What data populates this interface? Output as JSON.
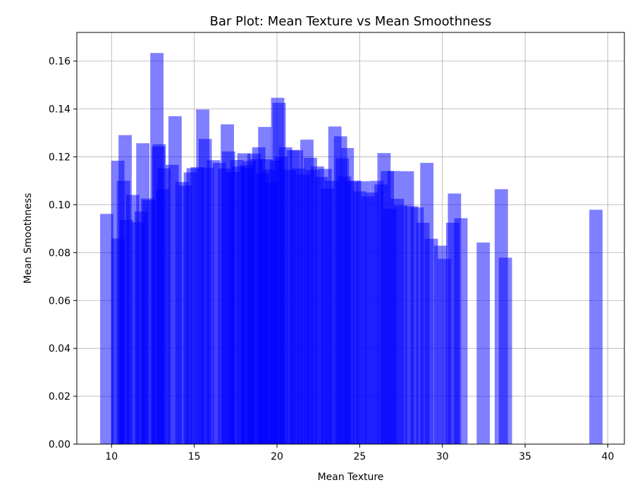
{
  "chart_data": {
    "type": "bar",
    "title": "Bar Plot: Mean Texture vs Mean Smoothness",
    "xlabel": "Mean Texture",
    "ylabel": "Mean Smoothness",
    "xlim": [
      7.9,
      41.0
    ],
    "ylim": [
      0.0,
      0.172
    ],
    "xticks": [
      10,
      15,
      20,
      25,
      30,
      35,
      40
    ],
    "yticks": [
      0.0,
      0.02,
      0.04,
      0.06,
      0.08,
      0.1,
      0.12,
      0.14,
      0.16
    ],
    "bar_width": 0.8,
    "bar_color": "#0000ff",
    "bar_alpha": 0.5,
    "grid": true,
    "x": [
      9.71,
      10.38,
      10.38,
      10.72,
      10.82,
      10.89,
      11.28,
      11.61,
      11.79,
      11.89,
      12.17,
      12.27,
      12.74,
      12.83,
      12.88,
      13.08,
      13.17,
      13.66,
      13.84,
      14.26,
      14.44,
      14.76,
      14.93,
      15.18,
      15.51,
      15.66,
      15.79,
      16.17,
      16.52,
      16.84,
      17.0,
      17.07,
      17.33,
      17.57,
      17.66,
      18.0,
      18.19,
      18.22,
      18.32,
      18.61,
      18.75,
      18.9,
      19.11,
      19.26,
      19.35,
      19.48,
      19.67,
      19.97,
      20.04,
      20.13,
      20.25,
      20.52,
      20.74,
      20.98,
      21.18,
      21.31,
      21.59,
      21.81,
      22.02,
      22.15,
      22.44,
      22.68,
      22.91,
      23.06,
      23.29,
      23.5,
      23.84,
      23.95,
      24.08,
      24.25,
      24.52,
      24.69,
      24.99,
      25.22,
      25.49,
      25.74,
      26.03,
      26.29,
      26.47,
      26.67,
      26.83,
      27.08,
      27.27,
      27.47,
      27.88,
      28.14,
      28.47,
      28.82,
      29.06,
      29.33,
      29.89,
      30.12,
      30.62,
      30.73,
      31.12,
      32.47,
      33.56,
      33.81,
      39.28
    ],
    "values": [
      0.0962,
      0.1184,
      0.0859,
      0.11,
      0.1291,
      0.0937,
      0.1041,
      0.0927,
      0.0972,
      0.1257,
      0.1026,
      0.1019,
      0.1634,
      0.1243,
      0.1253,
      0.1065,
      0.1152,
      0.1167,
      0.137,
      0.1095,
      0.108,
      0.1135,
      0.1153,
      0.1157,
      0.1398,
      0.1275,
      0.1155,
      0.1186,
      0.1175,
      0.1151,
      0.1336,
      0.1223,
      0.1137,
      0.1187,
      0.116,
      0.1215,
      0.1165,
      0.1152,
      0.1183,
      0.1214,
      0.1191,
      0.124,
      0.1132,
      0.1325,
      0.119,
      0.1147,
      0.1093,
      0.1184,
      0.1447,
      0.1426,
      0.1201,
      0.124,
      0.1145,
      0.1229,
      0.1227,
      0.1151,
      0.1127,
      0.1272,
      0.1196,
      0.1146,
      0.116,
      0.1116,
      0.115,
      0.1067,
      0.11,
      0.1327,
      0.1286,
      0.1194,
      0.1118,
      0.1237,
      0.1097,
      0.1101,
      0.1056,
      0.1098,
      0.1035,
      0.1051,
      0.11,
      0.1085,
      0.1216,
      0.1141,
      0.0983,
      0.1141,
      0.1025,
      0.0997,
      0.114,
      0.0994,
      0.0989,
      0.0925,
      0.1175,
      0.0858,
      0.0829,
      0.0774,
      0.0925,
      0.1047,
      0.0944,
      0.0842,
      0.1065,
      0.0779,
      0.0979
    ]
  }
}
